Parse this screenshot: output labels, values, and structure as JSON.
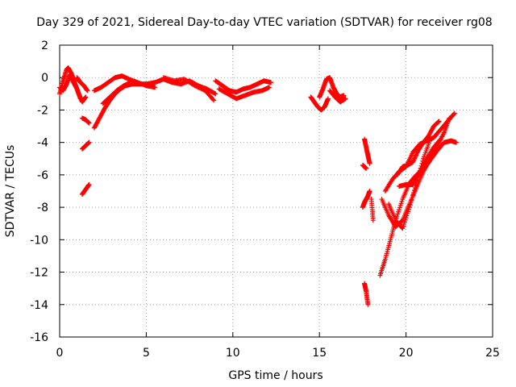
{
  "chart_data": {
    "type": "scatter",
    "title": "Day 329 of 2021, Sidereal Day-to-day VTEC variation (SDTVAR) for receiver rg08",
    "xlabel": "GPS time / hours",
    "ylabel": "SDTVAR / TECUs",
    "xlim": [
      0,
      25
    ],
    "ylim": [
      -16,
      2
    ],
    "xticks": [
      0,
      5,
      10,
      15,
      20,
      25
    ],
    "yticks": [
      2,
      0,
      -2,
      -4,
      -6,
      -8,
      -10,
      -12,
      -14,
      -16
    ],
    "grid": true,
    "marker": "+",
    "color": "#ff0000",
    "series": [
      {
        "x": [
          0.0,
          0.2,
          0.4,
          0.5,
          0.7,
          0.9,
          1.1,
          1.3,
          1.5
        ],
        "y": [
          -1.0,
          -0.2,
          0.5,
          0.6,
          0.2,
          -0.4,
          -1.0,
          -1.5,
          -1.2
        ]
      },
      {
        "x": [
          0.0,
          0.2,
          0.4,
          0.6,
          0.8,
          1.0,
          1.2
        ],
        "y": [
          -0.6,
          -0.8,
          -0.4,
          0.2,
          -0.3,
          -0.7,
          -1.3
        ]
      },
      {
        "x": [
          1.0,
          1.2,
          1.4,
          1.6
        ],
        "y": [
          0.0,
          -0.3,
          -0.5,
          -0.8
        ]
      },
      {
        "x": [
          1.3,
          1.5,
          1.7
        ],
        "y": [
          -2.5,
          -2.6,
          -2.8
        ]
      },
      {
        "x": [
          1.3,
          1.5,
          1.7
        ],
        "y": [
          -4.4,
          -4.2,
          -4.0
        ]
      },
      {
        "x": [
          1.3,
          1.5,
          1.7
        ],
        "y": [
          -7.2,
          -6.9,
          -6.6
        ]
      },
      {
        "x": [
          2.0,
          2.3,
          2.6,
          2.9,
          3.2,
          3.5,
          3.8,
          4.2,
          4.6,
          5.0,
          5.5
        ],
        "y": [
          -3.1,
          -2.5,
          -1.9,
          -1.4,
          -1.0,
          -0.7,
          -0.5,
          -0.4,
          -0.4,
          -0.4,
          -0.3
        ]
      },
      {
        "x": [
          2.0,
          2.4,
          2.8,
          3.2,
          3.6,
          4.0,
          4.5,
          5.0,
          5.5
        ],
        "y": [
          -0.8,
          -0.6,
          -0.3,
          0.0,
          0.1,
          -0.1,
          -0.3,
          -0.5,
          -0.6
        ]
      },
      {
        "x": [
          2.5,
          2.9,
          3.3,
          3.7,
          4.1
        ],
        "y": [
          -1.6,
          -1.2,
          -0.8,
          -0.5,
          -0.3
        ]
      },
      {
        "x": [
          5.5,
          6.0,
          6.5,
          7.0,
          7.5,
          8.0,
          8.5,
          9.0
        ],
        "y": [
          -0.3,
          -0.1,
          -0.3,
          -0.4,
          -0.2,
          -0.5,
          -0.7,
          -1.0
        ]
      },
      {
        "x": [
          6.0,
          6.6,
          7.2,
          7.8,
          8.4,
          8.9
        ],
        "y": [
          0.0,
          -0.2,
          -0.1,
          -0.5,
          -0.8,
          -1.4
        ]
      },
      {
        "x": [
          9.0,
          9.4,
          9.8,
          10.2,
          10.6,
          11.0,
          11.4,
          11.8,
          12.2
        ],
        "y": [
          -0.2,
          -0.5,
          -0.8,
          -0.9,
          -0.7,
          -0.6,
          -0.4,
          -0.2,
          -0.3
        ]
      },
      {
        "x": [
          9.2,
          9.7,
          10.2,
          10.7,
          11.2,
          11.7,
          12.1
        ],
        "y": [
          -0.7,
          -1.0,
          -1.3,
          -1.1,
          -0.9,
          -0.8,
          -0.6
        ]
      },
      {
        "x": [
          14.5,
          14.7,
          14.9,
          15.1,
          15.3,
          15.5
        ],
        "y": [
          -1.2,
          -1.5,
          -1.8,
          -2.0,
          -1.8,
          -1.3
        ]
      },
      {
        "x": [
          15.0,
          15.2,
          15.4,
          15.6,
          15.8,
          16.0,
          16.2,
          16.4
        ],
        "y": [
          -1.2,
          -0.7,
          -0.1,
          0.0,
          -0.6,
          -1.0,
          -1.2,
          -1.1
        ]
      },
      {
        "x": [
          15.6,
          15.9,
          16.2,
          16.5
        ],
        "y": [
          -0.8,
          -1.2,
          -1.5,
          -1.3
        ]
      },
      {
        "x": [
          17.6,
          17.7,
          17.8,
          17.9
        ],
        "y": [
          -3.8,
          -4.3,
          -4.8,
          -5.3
        ]
      },
      {
        "x": [
          17.5,
          17.7
        ],
        "y": [
          -5.4,
          -5.6
        ]
      },
      {
        "x": [
          17.5,
          17.6,
          17.7,
          17.8,
          17.9
        ],
        "y": [
          -8.0,
          -7.7,
          -7.5,
          -7.3,
          -7.0
        ]
      },
      {
        "x": [
          17.6,
          17.7,
          17.8
        ],
        "y": [
          -12.7,
          -13.2,
          -14.0
        ]
      },
      {
        "x": [
          18.0,
          18.1
        ],
        "y": [
          -7.5,
          -8.8
        ]
      },
      {
        "x": [
          18.5,
          18.8,
          19.1,
          19.4,
          19.8,
          20.2,
          20.6,
          21.0,
          21.4,
          21.8,
          22.2,
          22.6,
          22.9
        ],
        "y": [
          -12.2,
          -11.2,
          -10.0,
          -8.8,
          -7.5,
          -6.5,
          -6.0,
          -5.7,
          -5.1,
          -4.5,
          -4.0,
          -3.9,
          -4.0
        ]
      },
      {
        "x": [
          18.6,
          19.0,
          19.4,
          19.8,
          20.2,
          20.6,
          21.0,
          21.4,
          21.8,
          22.2,
          22.5
        ],
        "y": [
          -7.5,
          -8.5,
          -9.2,
          -8.8,
          -7.8,
          -6.8,
          -5.8,
          -5.0,
          -4.2,
          -3.4,
          -2.5
        ]
      },
      {
        "x": [
          18.8,
          19.2,
          19.6,
          20.0,
          20.4,
          20.8,
          21.2,
          21.6,
          22.0,
          22.4,
          22.8
        ],
        "y": [
          -7.0,
          -6.3,
          -5.8,
          -5.5,
          -4.6,
          -4.1,
          -3.9,
          -3.7,
          -3.2,
          -2.7,
          -2.2
        ]
      },
      {
        "x": [
          19.0,
          19.4,
          19.8,
          20.2,
          20.6,
          21.0,
          21.4
        ],
        "y": [
          -7.8,
          -8.8,
          -9.3,
          -8.0,
          -6.5,
          -5.0,
          -3.8
        ]
      },
      {
        "x": [
          19.6,
          20.0,
          20.4,
          20.8,
          21.2,
          21.6,
          22.0
        ],
        "y": [
          -6.7,
          -6.6,
          -6.6,
          -5.8,
          -5.0,
          -4.3,
          -3.8
        ]
      },
      {
        "x": [
          19.5,
          19.8,
          20.1,
          20.4,
          20.7,
          21.0,
          21.3,
          21.6,
          21.9
        ],
        "y": [
          -6.0,
          -5.5,
          -5.4,
          -5.2,
          -4.5,
          -4.0,
          -3.6,
          -3.0,
          -2.7
        ]
      }
    ]
  }
}
